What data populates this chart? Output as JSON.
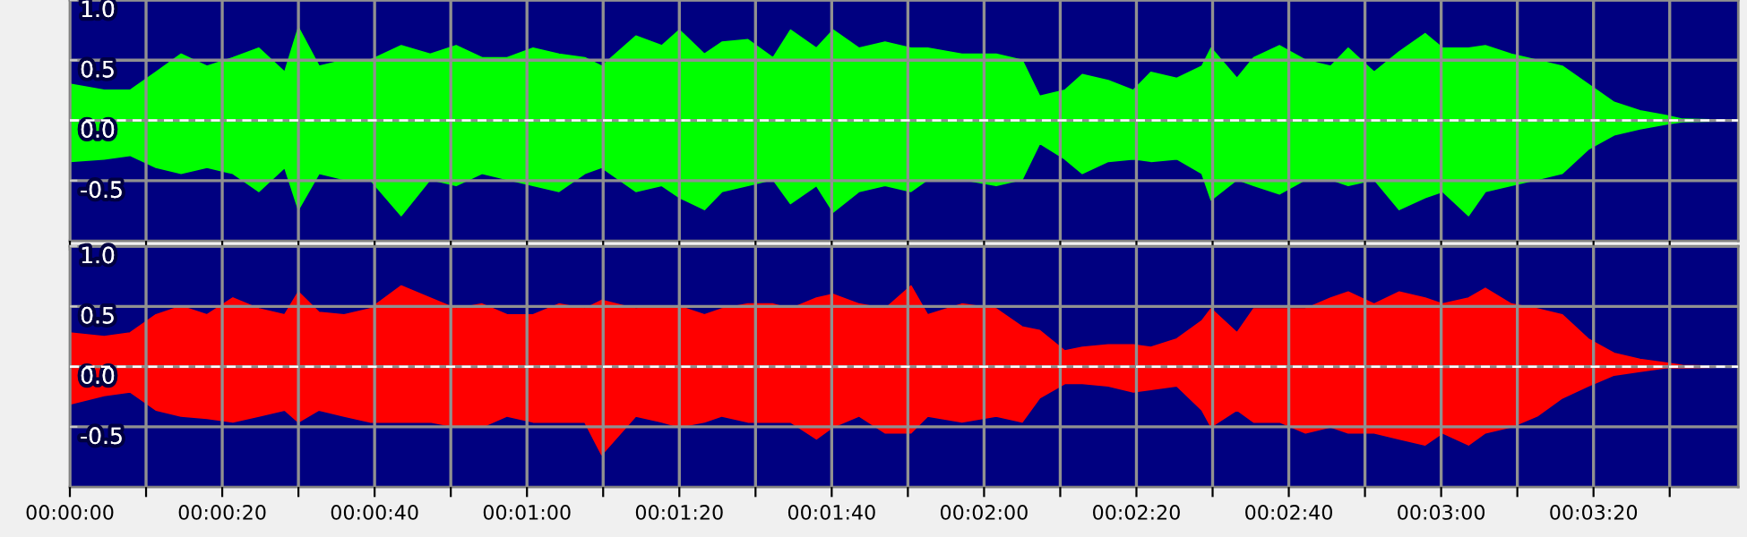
{
  "chart_data": [
    {
      "type": "area",
      "x": [
        0,
        4.5,
        7.9,
        11.3,
        14.6,
        18.0,
        21.4,
        24.8,
        28.2,
        30.0,
        32.7,
        36.0,
        39.4,
        43.5,
        47.3,
        50.7,
        54.1,
        57.4,
        60.8,
        64.2,
        67.6,
        69.8,
        74.3,
        77.7,
        80.0,
        83.3,
        85.6,
        89.0,
        92.3,
        94.6,
        98.0,
        100.2,
        103.6,
        107.0,
        110.4,
        112.6,
        117.1,
        121.6,
        125.0,
        127.3,
        130.6,
        132.9,
        136.3,
        139.6,
        141.9,
        145.3,
        148.6,
        149.8,
        153.2,
        155.4,
        158.8,
        162.2,
        165.5,
        167.8,
        171.2,
        174.5,
        177.9,
        180.2,
        183.6,
        185.8,
        189.2,
        192.6,
        195.9,
        199.3,
        202.7,
        206.1,
        209.5,
        211.7,
        218.9
      ],
      "series": [
        {
          "color": "#00ff00",
          "values": [
            0.3,
            0.25,
            0.25,
            0.4,
            0.55,
            0.45,
            0.52,
            0.6,
            0.4,
            0.77,
            0.45,
            0.5,
            0.5,
            0.62,
            0.55,
            0.62,
            0.52,
            0.52,
            0.6,
            0.55,
            0.52,
            0.45,
            0.7,
            0.62,
            0.75,
            0.55,
            0.65,
            0.67,
            0.52,
            0.75,
            0.6,
            0.75,
            0.6,
            0.65,
            0.6,
            0.6,
            0.55,
            0.55,
            0.5,
            0.2,
            0.25,
            0.38,
            0.33,
            0.25,
            0.4,
            0.35,
            0.45,
            0.6,
            0.35,
            0.52,
            0.62,
            0.5,
            0.45,
            0.6,
            0.4,
            0.57,
            0.72,
            0.6,
            0.6,
            0.62,
            0.55,
            0.5,
            0.45,
            0.3,
            0.15,
            0.08,
            0.04,
            0.01,
            0
          ]
        },
        {
          "color": "#00ff00",
          "values": [
            -0.34,
            -0.32,
            -0.29,
            -0.39,
            -0.44,
            -0.39,
            -0.44,
            -0.59,
            -0.39,
            -0.74,
            -0.44,
            -0.49,
            -0.49,
            -0.79,
            -0.49,
            -0.54,
            -0.44,
            -0.49,
            -0.54,
            -0.59,
            -0.44,
            -0.39,
            -0.59,
            -0.54,
            -0.64,
            -0.74,
            -0.59,
            -0.54,
            -0.49,
            -0.69,
            -0.54,
            -0.76,
            -0.59,
            -0.54,
            -0.59,
            -0.49,
            -0.49,
            -0.54,
            -0.49,
            -0.19,
            -0.32,
            -0.44,
            -0.34,
            -0.32,
            -0.34,
            -0.32,
            -0.44,
            -0.66,
            -0.49,
            -0.54,
            -0.61,
            -0.49,
            -0.49,
            -0.54,
            -0.49,
            -0.74,
            -0.64,
            -0.59,
            -0.79,
            -0.59,
            -0.54,
            -0.49,
            -0.44,
            -0.24,
            -0.12,
            -0.07,
            -0.03,
            -0.01,
            0
          ]
        }
      ],
      "xlim": [
        0,
        219
      ],
      "xticks": [
        {
          "value": 0,
          "label": null
        },
        {
          "value": 10,
          "label": null
        },
        {
          "value": 20,
          "label": null
        },
        {
          "value": 30,
          "label": null
        },
        {
          "value": 40,
          "label": null
        },
        {
          "value": 50,
          "label": null
        },
        {
          "value": 60,
          "label": null
        },
        {
          "value": 70,
          "label": null
        },
        {
          "value": 80,
          "label": null
        },
        {
          "value": 90,
          "label": null
        },
        {
          "value": 100,
          "label": null
        },
        {
          "value": 110,
          "label": null
        },
        {
          "value": 120,
          "label": null
        },
        {
          "value": 130,
          "label": null
        },
        {
          "value": 140,
          "label": null
        },
        {
          "value": 150,
          "label": null
        },
        {
          "value": 160,
          "label": null
        },
        {
          "value": 170,
          "label": null
        },
        {
          "value": 180,
          "label": null
        },
        {
          "value": 190,
          "label": null
        },
        {
          "value": 200,
          "label": null
        },
        {
          "value": 210,
          "label": null
        }
      ],
      "ylim": [
        -1,
        1
      ],
      "yticks": [
        {
          "value": 1,
          "label": "1.0"
        },
        {
          "value": 0.5,
          "label": "0.5"
        },
        {
          "value": 0,
          "label": "0.0"
        },
        {
          "value": -0.5,
          "label": "-0.5"
        }
      ],
      "tick_labels": "y",
      "grid": true,
      "ref_lines": [
        {
          "axis": "y",
          "value": 0,
          "color": "#ffffff",
          "line_style": "dashed"
        }
      ]
    },
    {
      "type": "area",
      "x": [
        0,
        4.5,
        7.9,
        11.3,
        14.6,
        18.0,
        21.4,
        24.8,
        28.2,
        30.0,
        32.7,
        36.0,
        39.4,
        43.5,
        47.3,
        50.7,
        54.1,
        57.4,
        60.8,
        64.2,
        67.6,
        69.8,
        74.3,
        77.7,
        80.0,
        83.3,
        85.6,
        89.0,
        92.3,
        94.6,
        98.0,
        100.2,
        103.6,
        107.0,
        110.4,
        112.6,
        117.1,
        121.6,
        125.0,
        127.3,
        130.6,
        132.9,
        136.3,
        139.6,
        141.9,
        145.3,
        148.6,
        149.8,
        153.2,
        155.4,
        158.8,
        162.2,
        165.5,
        167.8,
        171.2,
        174.5,
        177.9,
        180.2,
        183.6,
        185.8,
        189.2,
        192.6,
        195.9,
        199.3,
        202.7,
        206.1,
        209.5,
        211.7,
        218.9
      ],
      "series": [
        {
          "color": "#ff0000",
          "values": [
            0.28,
            0.25,
            0.28,
            0.43,
            0.5,
            0.43,
            0.57,
            0.48,
            0.43,
            0.62,
            0.45,
            0.43,
            0.48,
            0.67,
            0.57,
            0.48,
            0.52,
            0.43,
            0.43,
            0.52,
            0.48,
            0.55,
            0.48,
            0.5,
            0.5,
            0.43,
            0.48,
            0.52,
            0.52,
            0.48,
            0.57,
            0.6,
            0.52,
            0.48,
            0.67,
            0.43,
            0.52,
            0.48,
            0.33,
            0.3,
            0.13,
            0.16,
            0.18,
            0.18,
            0.16,
            0.23,
            0.38,
            0.48,
            0.28,
            0.48,
            0.48,
            0.48,
            0.57,
            0.62,
            0.52,
            0.62,
            0.57,
            0.52,
            0.57,
            0.65,
            0.52,
            0.48,
            0.43,
            0.23,
            0.11,
            0.06,
            0.03,
            0.01,
            0
          ]
        },
        {
          "color": "#ff0000",
          "values": [
            -0.31,
            -0.24,
            -0.21,
            -0.36,
            -0.41,
            -0.43,
            -0.46,
            -0.41,
            -0.36,
            -0.46,
            -0.36,
            -0.41,
            -0.46,
            -0.46,
            -0.46,
            -0.5,
            -0.5,
            -0.41,
            -0.46,
            -0.46,
            -0.46,
            -0.73,
            -0.41,
            -0.46,
            -0.5,
            -0.46,
            -0.41,
            -0.46,
            -0.46,
            -0.46,
            -0.6,
            -0.5,
            -0.41,
            -0.55,
            -0.55,
            -0.41,
            -0.46,
            -0.41,
            -0.46,
            -0.26,
            -0.14,
            -0.14,
            -0.16,
            -0.21,
            -0.19,
            -0.16,
            -0.36,
            -0.5,
            -0.36,
            -0.46,
            -0.46,
            -0.55,
            -0.5,
            -0.55,
            -0.55,
            -0.6,
            -0.65,
            -0.55,
            -0.65,
            -0.55,
            -0.5,
            -0.41,
            -0.26,
            -0.16,
            -0.07,
            -0.04,
            -0.01,
            -0.01,
            0
          ]
        }
      ],
      "xlim": [
        0,
        219
      ],
      "xticks": [
        {
          "value": 0,
          "label": "00:00:00"
        },
        {
          "value": 10,
          "label": null
        },
        {
          "value": 20,
          "label": "00:00:20"
        },
        {
          "value": 30,
          "label": null
        },
        {
          "value": 40,
          "label": "00:00:40"
        },
        {
          "value": 50,
          "label": null
        },
        {
          "value": 60,
          "label": "00:01:00"
        },
        {
          "value": 70,
          "label": null
        },
        {
          "value": 80,
          "label": "00:01:20"
        },
        {
          "value": 90,
          "label": null
        },
        {
          "value": 100,
          "label": "00:01:40"
        },
        {
          "value": 110,
          "label": null
        },
        {
          "value": 120,
          "label": "00:02:00"
        },
        {
          "value": 130,
          "label": null
        },
        {
          "value": 140,
          "label": "00:02:20"
        },
        {
          "value": 150,
          "label": null
        },
        {
          "value": 160,
          "label": "00:02:40"
        },
        {
          "value": 170,
          "label": null
        },
        {
          "value": 180,
          "label": "00:03:00"
        },
        {
          "value": 190,
          "label": null
        },
        {
          "value": 200,
          "label": "00:03:20"
        },
        {
          "value": 210,
          "label": null
        }
      ],
      "ylim": [
        -1,
        1
      ],
      "yticks": [
        {
          "value": 1,
          "label": "1.0"
        },
        {
          "value": 0.5,
          "label": "0.5"
        },
        {
          "value": 0,
          "label": "0.0"
        },
        {
          "value": -0.5,
          "label": "-0.5"
        }
      ],
      "grid": true,
      "ref_lines": [
        {
          "axis": "y",
          "value": 0,
          "color": "#ffffff",
          "line_style": "dashed"
        }
      ]
    }
  ]
}
